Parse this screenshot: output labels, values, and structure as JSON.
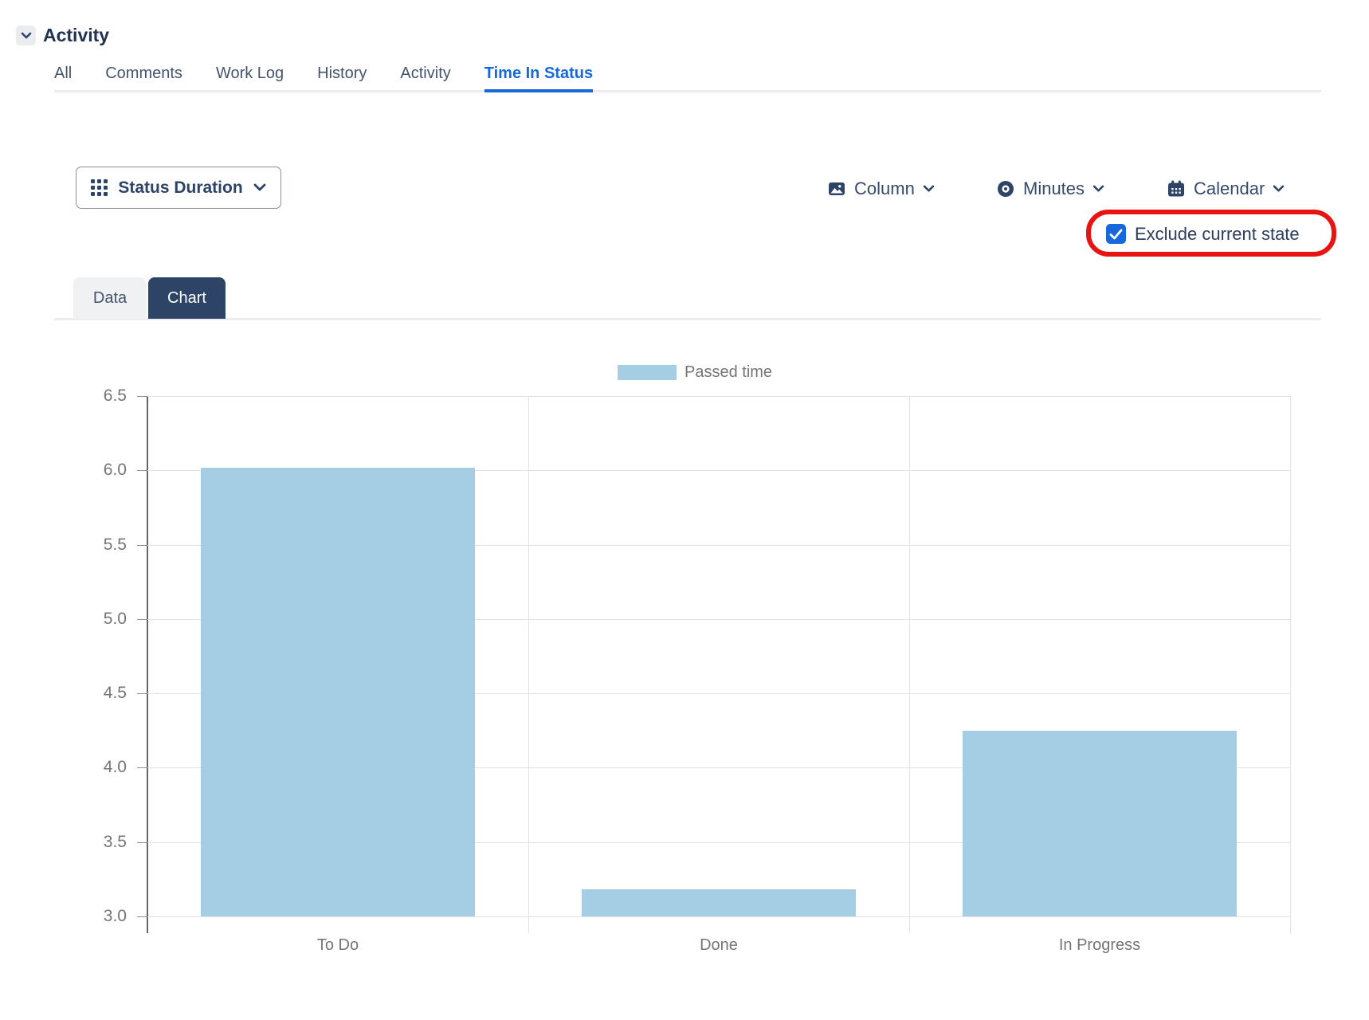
{
  "header": {
    "title": "Activity"
  },
  "tabs": {
    "items": [
      "All",
      "Comments",
      "Work Log",
      "History",
      "Activity",
      "Time In Status"
    ],
    "active": "Time In Status"
  },
  "toolbar": {
    "status_duration": {
      "label": "Status Duration"
    },
    "column": {
      "label": "Column"
    },
    "minutes": {
      "label": "Minutes"
    },
    "calendar": {
      "label": "Calendar"
    },
    "exclude_current_state": {
      "label": "Exclude current state",
      "checked": true,
      "highlighted": true
    }
  },
  "view_tabs": {
    "items": [
      "Data",
      "Chart"
    ],
    "active": "Chart"
  },
  "chart_data": {
    "type": "bar",
    "title": "",
    "categories": [
      "To Do",
      "Done",
      "In Progress"
    ],
    "series": [
      {
        "name": "Passed time",
        "values": [
          6.02,
          3.18,
          4.25
        ]
      }
    ],
    "legend": {
      "position": "top",
      "entries": [
        "Passed time"
      ]
    },
    "xlabel": "",
    "ylabel": "",
    "ylim": [
      3.0,
      6.5
    ],
    "ytick_step": 0.5,
    "yticks": [
      "6.5",
      "6.0",
      "5.5",
      "5.0",
      "4.5",
      "4.0",
      "3.5",
      "3.0"
    ],
    "grid": true
  },
  "colors": {
    "bar": "#a5cde3",
    "accent_blue": "#1868db",
    "navy": "#2e4466",
    "annotation_red": "#e71414",
    "grid": "#e3e3e3",
    "axis_text": "#757575"
  }
}
